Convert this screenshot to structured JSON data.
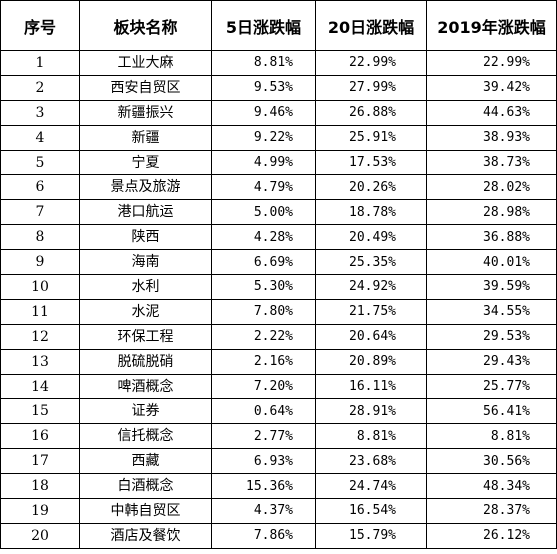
{
  "table": {
    "headers": [
      "序号",
      "板块名称",
      "5日涨跌幅",
      "20日涨跌幅",
      "2019年涨跌幅"
    ],
    "rows": [
      [
        "1",
        "工业大麻",
        "8.81%",
        "22.99%",
        "22.99%"
      ],
      [
        "2",
        "西安自贸区",
        "9.53%",
        "27.99%",
        "39.42%"
      ],
      [
        "3",
        "新疆振兴",
        "9.46%",
        "26.88%",
        "44.63%"
      ],
      [
        "4",
        "新疆",
        "9.22%",
        "25.91%",
        "38.93%"
      ],
      [
        "5",
        "宁夏",
        "4.99%",
        "17.53%",
        "38.73%"
      ],
      [
        "6",
        "景点及旅游",
        "4.79%",
        "20.26%",
        "28.02%"
      ],
      [
        "7",
        "港口航运",
        "5.00%",
        "18.78%",
        "28.98%"
      ],
      [
        "8",
        "陕西",
        "4.28%",
        "20.49%",
        "36.88%"
      ],
      [
        "9",
        "海南",
        "6.69%",
        "25.35%",
        "40.01%"
      ],
      [
        "10",
        "水利",
        "5.30%",
        "24.92%",
        "39.59%"
      ],
      [
        "11",
        "水泥",
        "7.80%",
        "21.75%",
        "34.55%"
      ],
      [
        "12",
        "环保工程",
        "2.22%",
        "20.64%",
        "29.53%"
      ],
      [
        "13",
        "脱硫脱硝",
        "2.16%",
        "20.89%",
        "29.43%"
      ],
      [
        "14",
        "啤酒概念",
        "7.20%",
        "16.11%",
        "25.77%"
      ],
      [
        "15",
        "证券",
        "0.64%",
        "28.91%",
        "56.41%"
      ],
      [
        "16",
        "信托概念",
        "2.77%",
        "8.81%",
        "8.81%"
      ],
      [
        "17",
        "西藏",
        "6.93%",
        "23.68%",
        "30.56%"
      ],
      [
        "18",
        "白酒概念",
        "15.36%",
        "24.74%",
        "48.34%"
      ],
      [
        "19",
        "中韩自贸区",
        "4.37%",
        "16.54%",
        "28.37%"
      ],
      [
        "20",
        "酒店及餐饮",
        "7.86%",
        "15.79%",
        "26.12%"
      ]
    ]
  }
}
